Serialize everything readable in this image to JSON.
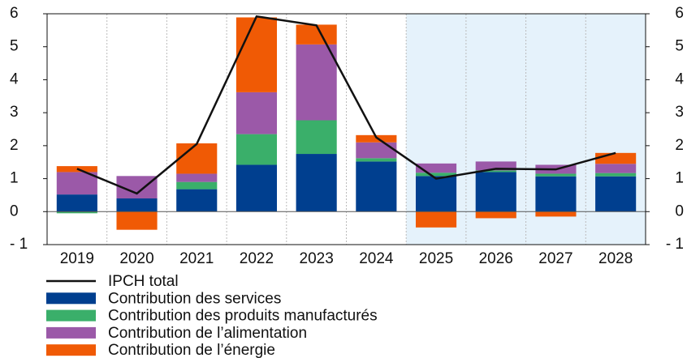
{
  "chart_data": {
    "type": "bar",
    "categories": [
      "2019",
      "2020",
      "2021",
      "2022",
      "2023",
      "2024",
      "2025",
      "2026",
      "2027",
      "2028"
    ],
    "series": [
      {
        "name": "IPCH total",
        "kind": "line",
        "color": "#111111",
        "values": [
          1.3,
          0.55,
          2.05,
          5.92,
          5.65,
          2.25,
          1.0,
          1.3,
          1.28,
          1.78
        ]
      },
      {
        "name": "Contribution des services",
        "color": "#003f8f",
        "values": [
          0.52,
          0.4,
          0.68,
          1.42,
          1.75,
          1.52,
          1.08,
          1.2,
          1.07,
          1.07
        ]
      },
      {
        "name": "Contribution des produits manufacturés",
        "color": "#3aaf6a",
        "values": [
          -0.05,
          0,
          0.22,
          0.93,
          1.02,
          0.1,
          0.1,
          0.05,
          0.08,
          0.1
        ]
      },
      {
        "name": "Contribution de l’alimentation",
        "color": "#9b59a8",
        "values": [
          0.68,
          0.68,
          0.25,
          1.27,
          2.3,
          0.48,
          0.28,
          0.27,
          0.27,
          0.28
        ]
      },
      {
        "name": "Contribution de l’énergie",
        "color": "#f05a05",
        "values": [
          0.18,
          -0.55,
          0.92,
          2.27,
          0.6,
          0.22,
          -0.48,
          -0.2,
          -0.15,
          0.33
        ]
      }
    ],
    "ylim": [
      -1,
      6
    ],
    "yticks": [
      {
        "value": -1,
        "label": "- 1"
      },
      0,
      1,
      2,
      3,
      4,
      5,
      6
    ],
    "y2lim": [
      -1,
      6
    ],
    "y2ticks": [
      {
        "value": -1,
        "label": "- 1"
      },
      0,
      1,
      2,
      3,
      4,
      5,
      6
    ],
    "shade": {
      "from": "2025",
      "to": "2028",
      "color": "#e5f2fb"
    },
    "grid": true
  }
}
